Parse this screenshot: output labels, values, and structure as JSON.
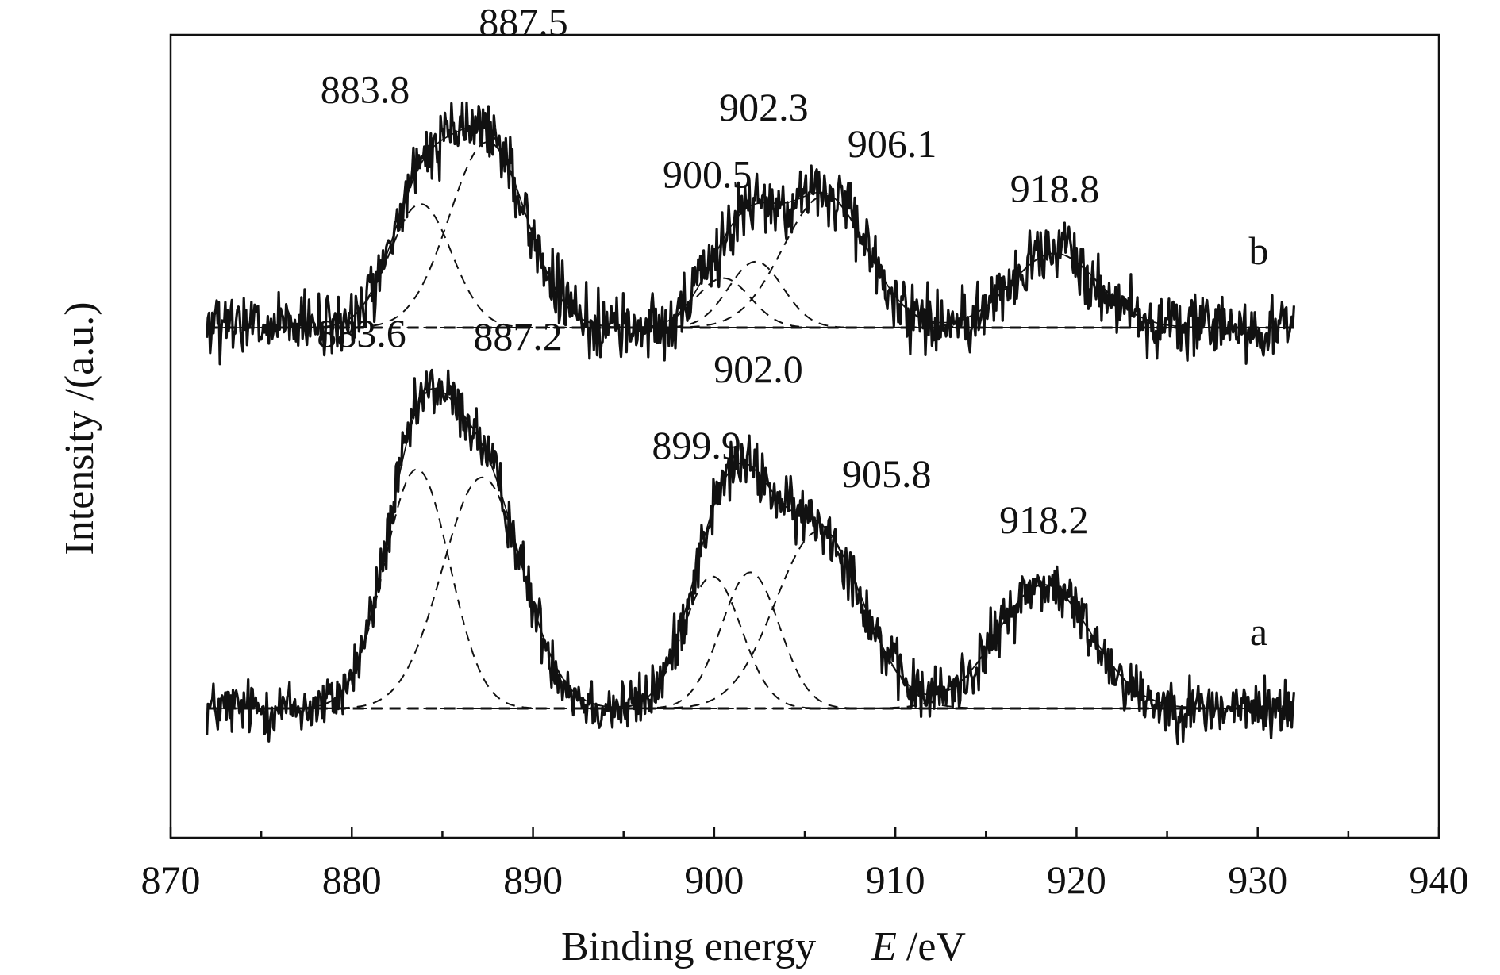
{
  "chart_data": {
    "type": "line",
    "xlabel": "Binding energy",
    "xlabel_symbol": "E",
    "xlabel_unit": "/eV",
    "ylabel": "Intensity /(a.u.)",
    "xlim": [
      870,
      940
    ],
    "x_ticks": [
      870,
      880,
      890,
      900,
      910,
      920,
      930,
      940
    ],
    "x_tick_labels": [
      "870",
      "880",
      "890",
      "900",
      "910",
      "920",
      "930",
      "940"
    ],
    "x_range_measured": [
      872,
      932
    ],
    "y_ticks_shown": false,
    "grid": false,
    "series": [
      {
        "name": "a",
        "baseline": 0,
        "noise": 0.05,
        "peaks": [
          {
            "center": 883.6,
            "height": 0.58,
            "width": 1.8,
            "label": "883.6"
          },
          {
            "center": 887.2,
            "height": 0.56,
            "width": 2.2,
            "label": "887.2"
          },
          {
            "center": 899.9,
            "height": 0.32,
            "width": 1.6,
            "label": "899.9"
          },
          {
            "center": 902.0,
            "height": 0.33,
            "width": 1.6,
            "label": "902.0"
          },
          {
            "center": 905.8,
            "height": 0.43,
            "width": 2.4,
            "label": "905.8"
          },
          {
            "center": 918.2,
            "height": 0.3,
            "width": 2.6,
            "label": "918.2"
          }
        ]
      },
      {
        "name": "b",
        "baseline": 0,
        "noise": 0.055,
        "peaks": [
          {
            "center": 883.8,
            "height": 0.3,
            "width": 1.7,
            "label": "883.8"
          },
          {
            "center": 887.5,
            "height": 0.45,
            "width": 2.1,
            "label": "887.5"
          },
          {
            "center": 900.5,
            "height": 0.12,
            "width": 1.5,
            "label": "900.5"
          },
          {
            "center": 902.3,
            "height": 0.16,
            "width": 1.5,
            "label": "902.3"
          },
          {
            "center": 906.1,
            "height": 0.32,
            "width": 2.3,
            "label": "906.1"
          },
          {
            "center": 918.8,
            "height": 0.18,
            "width": 2.4,
            "label": "918.8"
          }
        ]
      }
    ]
  }
}
